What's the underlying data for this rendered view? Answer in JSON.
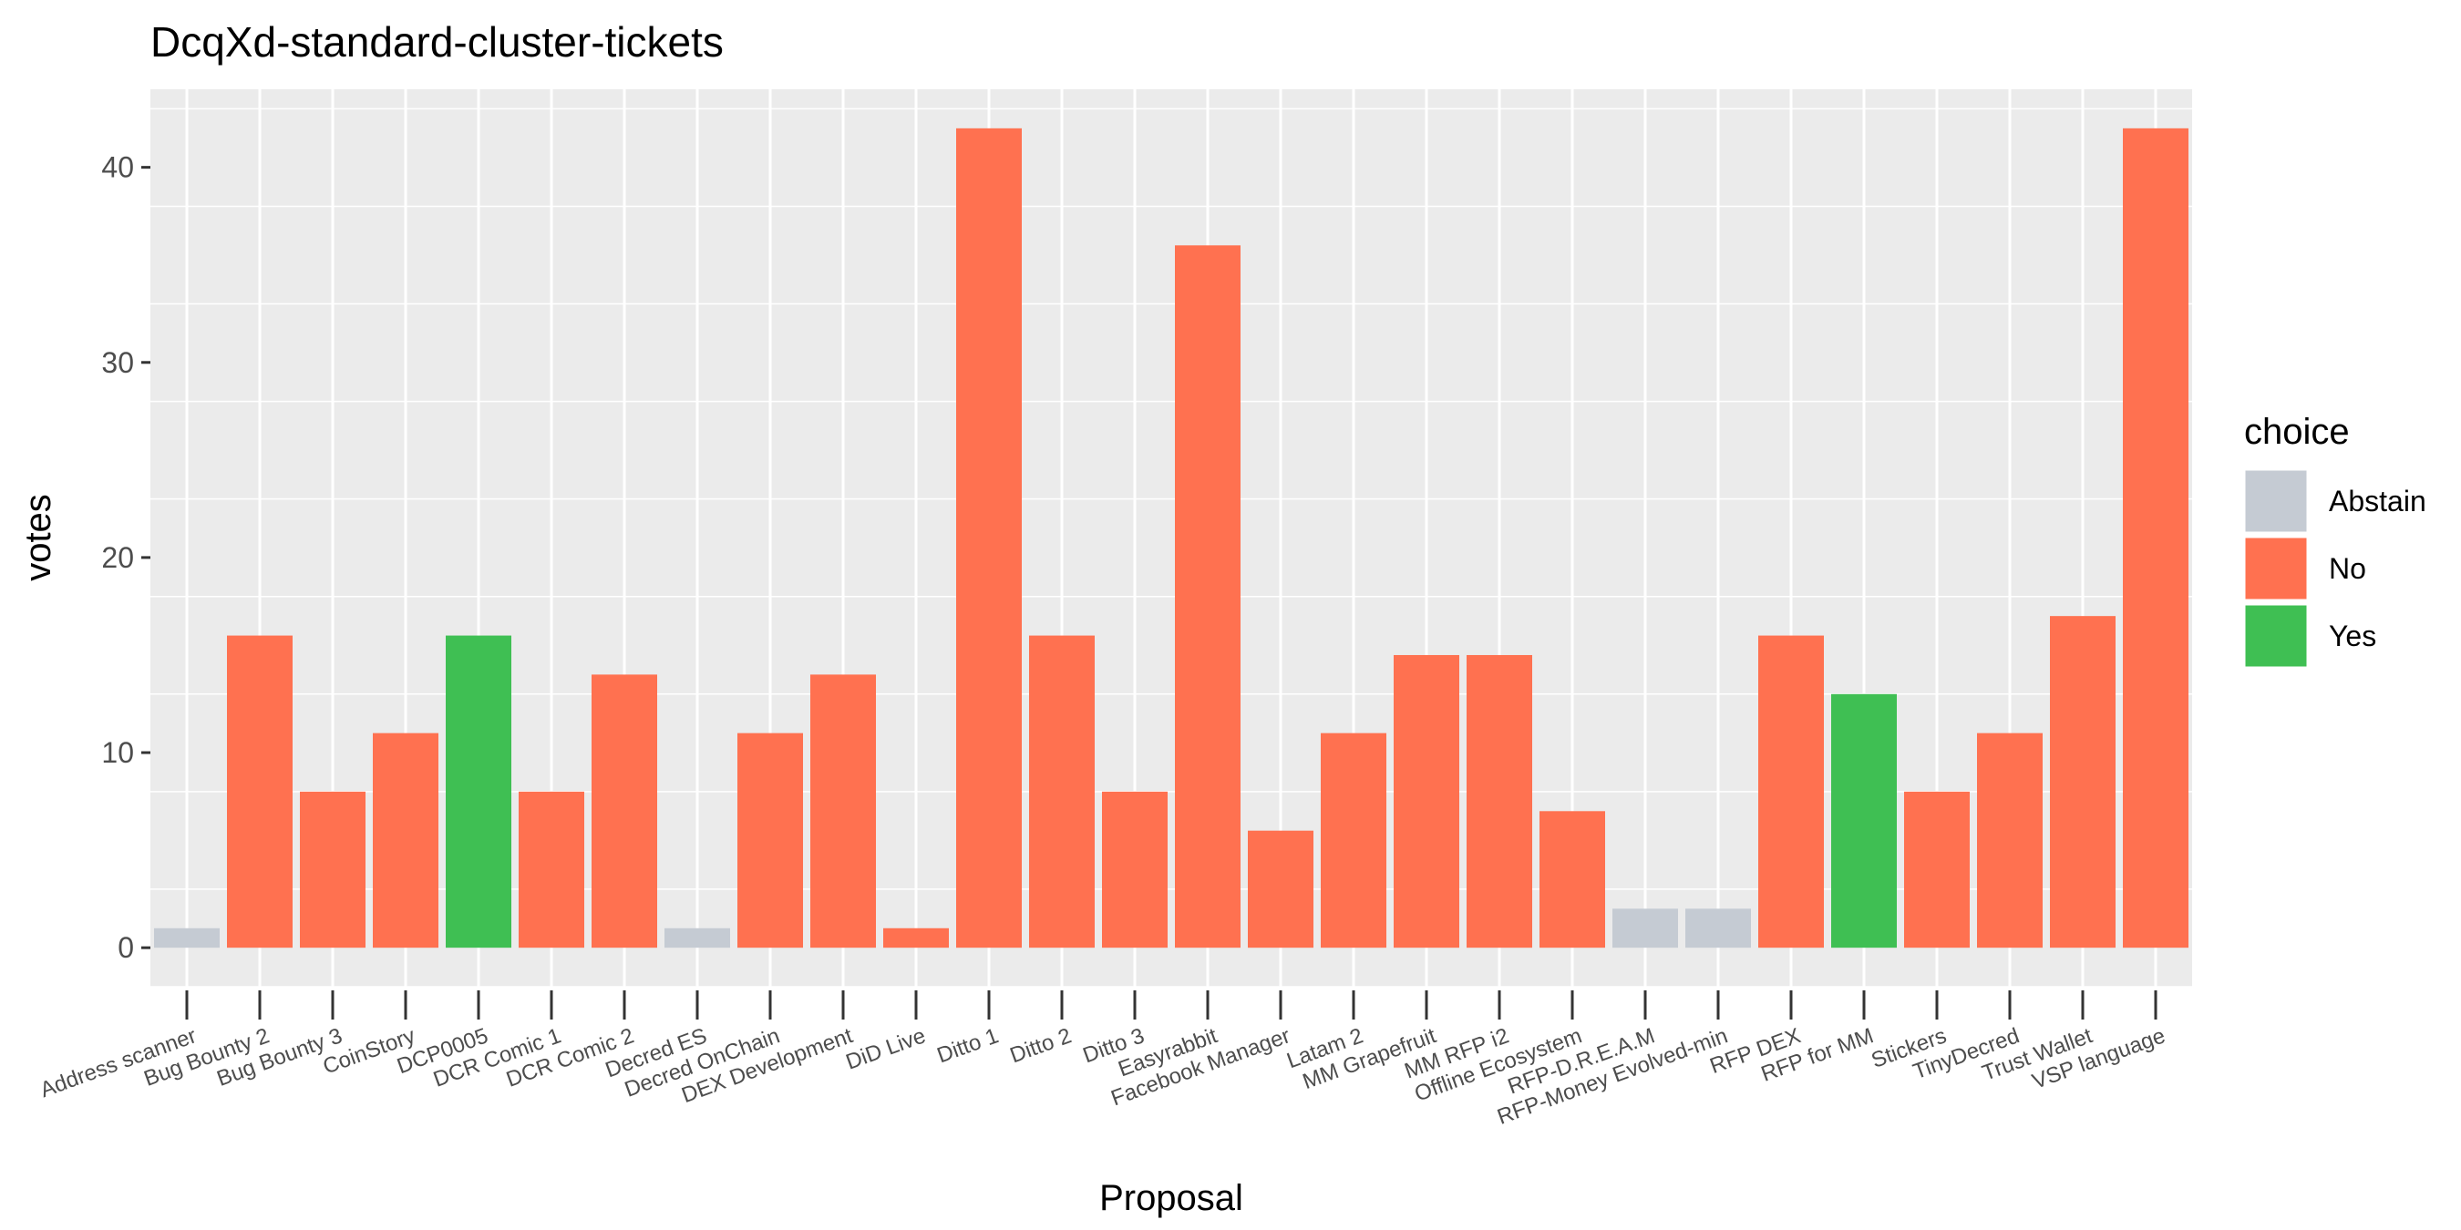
{
  "chart_data": {
    "type": "bar",
    "title": "DcqXd-standard-cluster-tickets",
    "xlabel": "Proposal",
    "ylabel": "votes",
    "ylim": [
      -2,
      44
    ],
    "yticks": [
      0,
      10,
      20,
      30,
      40
    ],
    "grid": true,
    "legend": {
      "title": "choice",
      "placement": "right",
      "entries": [
        {
          "name": "Abstain",
          "color": "#c5cbd3"
        },
        {
          "name": "No",
          "color": "#ff7150"
        },
        {
          "name": "Yes",
          "color": "#3fbf53"
        }
      ]
    },
    "categories": [
      "Address scanner",
      "Bug Bounty 2",
      "Bug Bounty 3",
      "CoinStory",
      "DCP0005",
      "DCR Comic 1",
      "DCR Comic 2",
      "Decred ES",
      "Decred OnChain",
      "DEX Development",
      "DiD Live",
      "Ditto 1",
      "Ditto 2",
      "Ditto 3",
      "Easyrabbit",
      "Facebook Manager",
      "Latam 2",
      "MM Grapefruit",
      "MM RFP i2",
      "Offline Ecosystem",
      "RFP-D.R.E.A.M",
      "RFP-Money Evolved-min",
      "RFP DEX",
      "RFP for MM",
      "Stickers",
      "TinyDecred",
      "Trust Wallet",
      "VSP language"
    ],
    "values": [
      1,
      16,
      8,
      11,
      16,
      8,
      14,
      1,
      11,
      14,
      1,
      42,
      16,
      8,
      36,
      6,
      11,
      15,
      15,
      7,
      2,
      2,
      16,
      13,
      8,
      11,
      17,
      42
    ],
    "choices": [
      "Abstain",
      "No",
      "No",
      "No",
      "Yes",
      "No",
      "No",
      "Abstain",
      "No",
      "No",
      "No",
      "No",
      "No",
      "No",
      "No",
      "No",
      "No",
      "No",
      "No",
      "No",
      "Abstain",
      "Abstain",
      "No",
      "Yes",
      "No",
      "No",
      "No",
      "No"
    ]
  },
  "colors": {
    "panel_background": "#ebebeb",
    "grid_major": "#ffffff",
    "axis_text": "#4d4d4d",
    "tick": "#333333"
  }
}
